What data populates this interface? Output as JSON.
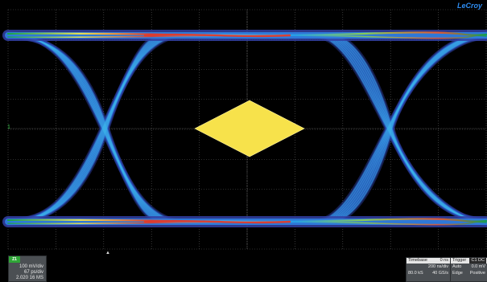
{
  "brand": "LeCroy",
  "channel": {
    "tab_label": "Z1",
    "marker_label": "1",
    "scale": "100 mV/div",
    "time_scale": "67 ps/div",
    "sample_count": "2.020 16 MS"
  },
  "timebase": {
    "label": "Timebase",
    "delay": "0 ns",
    "time_div": "200 ns/div",
    "sample_points": "80.0 kS",
    "sample_rate": "40 GS/s"
  },
  "trigger": {
    "label": "Trigger",
    "channel": "C1 DC",
    "mode": "Auto",
    "level": "0.0 mV",
    "type": "Edge",
    "slope": "Positive"
  },
  "trigger_marker": "▲",
  "colors": {
    "background": "#000000",
    "grid": "#5a5a5a",
    "mask": "#f7e24b",
    "brand": "#2e8cf0",
    "channel": "#2fa637"
  }
}
